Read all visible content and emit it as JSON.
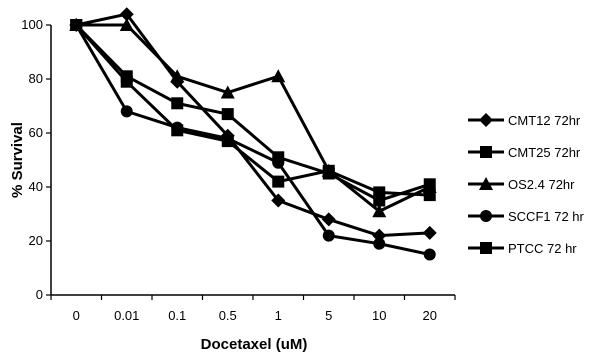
{
  "chart_data": {
    "type": "line",
    "title": "",
    "xlabel": "Docetaxel (uM)",
    "ylabel": "% Survival",
    "categories": [
      "0",
      "0.01",
      "0.1",
      "0.5",
      "1",
      "5",
      "10",
      "20"
    ],
    "ylim": [
      0,
      100
    ],
    "yticks": [
      "0",
      "20",
      "40",
      "60",
      "80",
      "100"
    ],
    "grid": false,
    "legend_position": "right",
    "series": [
      {
        "name": "CMT12 72hr",
        "marker": "diamond",
        "values": [
          100,
          104,
          79,
          59,
          35,
          28,
          22,
          23
        ]
      },
      {
        "name": "CMT25 72hr",
        "marker": "square",
        "values": [
          100,
          79,
          61,
          57,
          42,
          46,
          38,
          37
        ]
      },
      {
        "name": "OS2.4 72hr",
        "marker": "triangle",
        "values": [
          100,
          100,
          81,
          75,
          81,
          46,
          31,
          40
        ]
      },
      {
        "name": "SCCF1 72 hr",
        "marker": "circle",
        "values": [
          100,
          68,
          62,
          58,
          49,
          22,
          19,
          15
        ]
      },
      {
        "name": "PTCC 72 hr",
        "marker": "square",
        "values": [
          100,
          81,
          71,
          67,
          51,
          45,
          35,
          41
        ]
      }
    ],
    "colors": {
      "line": "#000000",
      "marker": "#000000"
    }
  }
}
